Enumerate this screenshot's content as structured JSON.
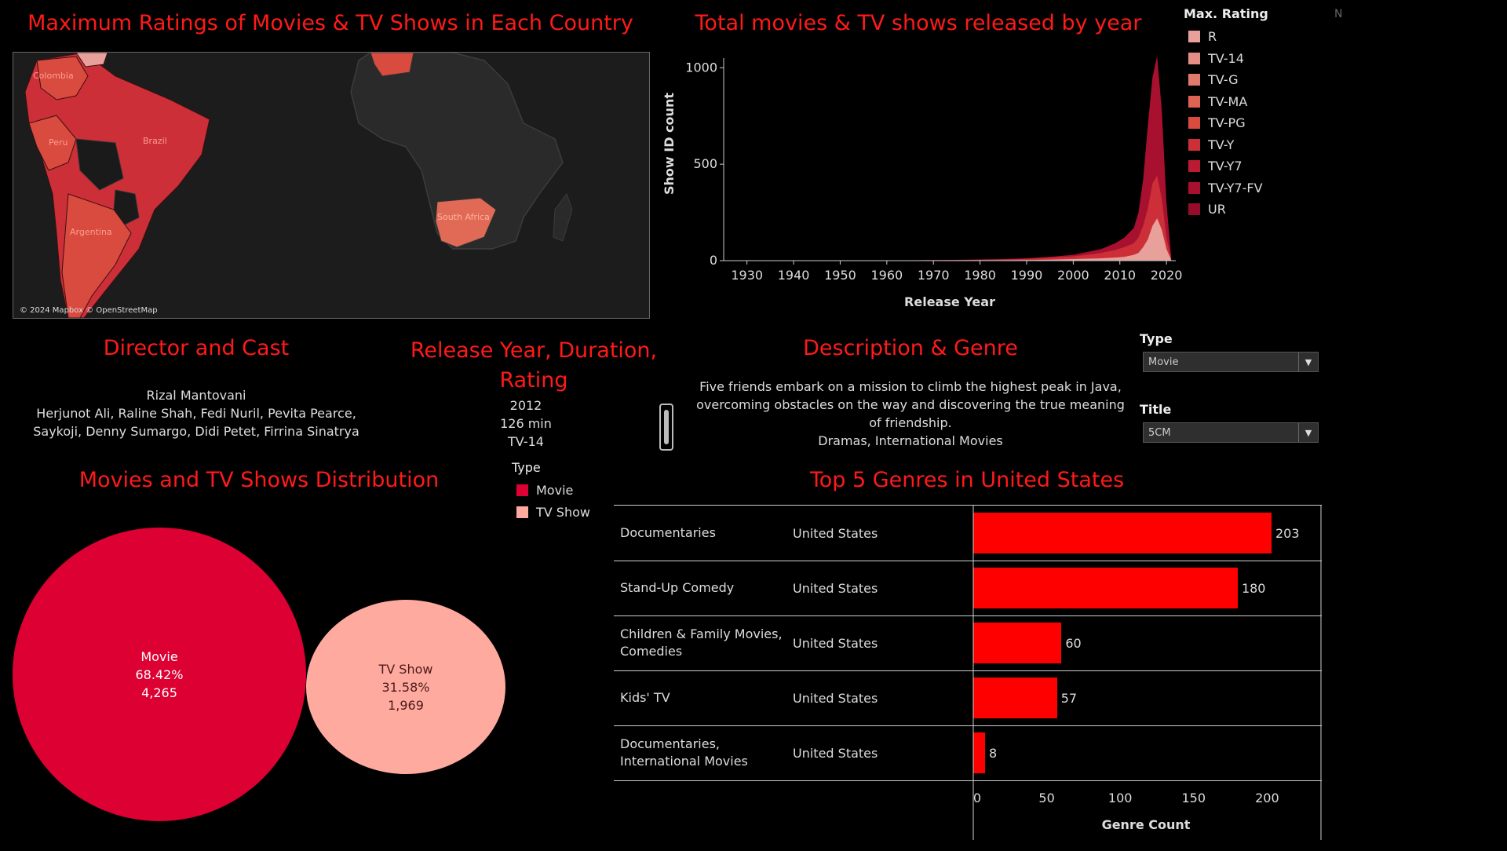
{
  "titles": {
    "map": "Maximum Ratings of Movies & TV Shows in Each Country",
    "area": "Total movies & TV shows released by year",
    "director": "Director and Cast",
    "release": "Release Year, Duration, Rating",
    "description": "Description & Genre",
    "distribution": "Movies and TV Shows Distribution",
    "top_genres": "Top 5 Genres in United States"
  },
  "map": {
    "attribution": "© 2024 Mapbox © OpenStreetMap",
    "labels": [
      "Colombia",
      "Peru",
      "Brazil",
      "Argentina",
      "South Africa"
    ]
  },
  "corner_mark": "N",
  "rating_legend": {
    "title": "Max. Rating",
    "items": [
      {
        "label": "R",
        "color": "#e8a09a"
      },
      {
        "label": "TV-14",
        "color": "#e58e87"
      },
      {
        "label": "TV-G",
        "color": "#e07a6f"
      },
      {
        "label": "TV-MA",
        "color": "#dd6455"
      },
      {
        "label": "TV-PG",
        "color": "#d94a3f"
      },
      {
        "label": "TV-Y",
        "color": "#cc2f38"
      },
      {
        "label": "TV-Y7",
        "color": "#bb1a33"
      },
      {
        "label": "TV-Y7-FV",
        "color": "#a8102f"
      },
      {
        "label": "UR",
        "color": "#970c2b"
      }
    ]
  },
  "chart_data": [
    {
      "type": "area",
      "title": "Total movies & TV shows released by year",
      "xlabel": "Release Year",
      "ylabel": "Show ID count",
      "xlim": [
        1925,
        2022
      ],
      "ylim": [
        0,
        1050
      ],
      "xticks": [
        1930,
        1940,
        1950,
        1960,
        1970,
        1980,
        1990,
        2000,
        2010,
        2020
      ],
      "yticks": [
        0,
        500,
        1000
      ],
      "x": [
        1925,
        1960,
        1975,
        1985,
        1990,
        1995,
        2000,
        2003,
        2006,
        2009,
        2011,
        2013,
        2014,
        2015,
        2016,
        2017,
        2018,
        2019,
        2020,
        2021
      ],
      "series": [
        {
          "color": "#a8102f",
          "values": [
            0,
            1,
            4,
            8,
            12,
            20,
            30,
            45,
            60,
            90,
            120,
            170,
            250,
            420,
            700,
            950,
            1060,
            780,
            300,
            20
          ]
        },
        {
          "color": "#cc2f38",
          "values": [
            0,
            1,
            3,
            6,
            9,
            15,
            22,
            30,
            40,
            55,
            70,
            90,
            120,
            180,
            270,
            400,
            440,
            320,
            120,
            10
          ]
        },
        {
          "color": "#e8a09a",
          "values": [
            0,
            0,
            1,
            2,
            3,
            5,
            8,
            10,
            12,
            16,
            20,
            30,
            40,
            70,
            110,
            180,
            220,
            160,
            60,
            5
          ]
        }
      ]
    },
    {
      "type": "bar",
      "title": "Top 5 Genres in United States",
      "xlabel": "Genre Count",
      "categories": [
        "Documentaries",
        "Stand-Up Comedy",
        "Children & Family Movies, Comedies",
        "Kids' TV",
        "Documentaries, International Movies"
      ],
      "country": "United States",
      "values": [
        203,
        180,
        60,
        57,
        8
      ],
      "xlim": [
        0,
        235
      ],
      "xticks": [
        0,
        50,
        100,
        150,
        200
      ]
    },
    {
      "type": "pie",
      "title": "Movies and TV Shows Distribution",
      "categories": [
        "Movie",
        "TV Show"
      ],
      "values": [
        4265,
        1969
      ],
      "percent_labels": [
        "68.42%",
        "31.58%"
      ],
      "count_labels": [
        "4,265",
        "1,969"
      ]
    }
  ],
  "details": {
    "director": "Rizal Mantovani",
    "cast": "Herjunot Ali, Raline Shah, Fedi Nuril, Pevita Pearce, Saykoji, Denny Sumargo, Didi Petet, Firrina Sinatrya",
    "year": "2012",
    "duration": "126 min",
    "rating": "TV-14",
    "description": "Five friends embark on a mission to climb the highest peak in Java, overcoming obstacles on the way and discovering the true meaning of friendship.",
    "genre": "Dramas, International Movies"
  },
  "filters": {
    "type_label": "Type",
    "type_value": "Movie",
    "title_label": "Title",
    "title_value": "5CM"
  },
  "type_legend": {
    "title": "Type",
    "items": [
      {
        "label": "Movie",
        "color": "#dc0033"
      },
      {
        "label": "TV Show",
        "color": "#ffaa9e"
      }
    ]
  }
}
